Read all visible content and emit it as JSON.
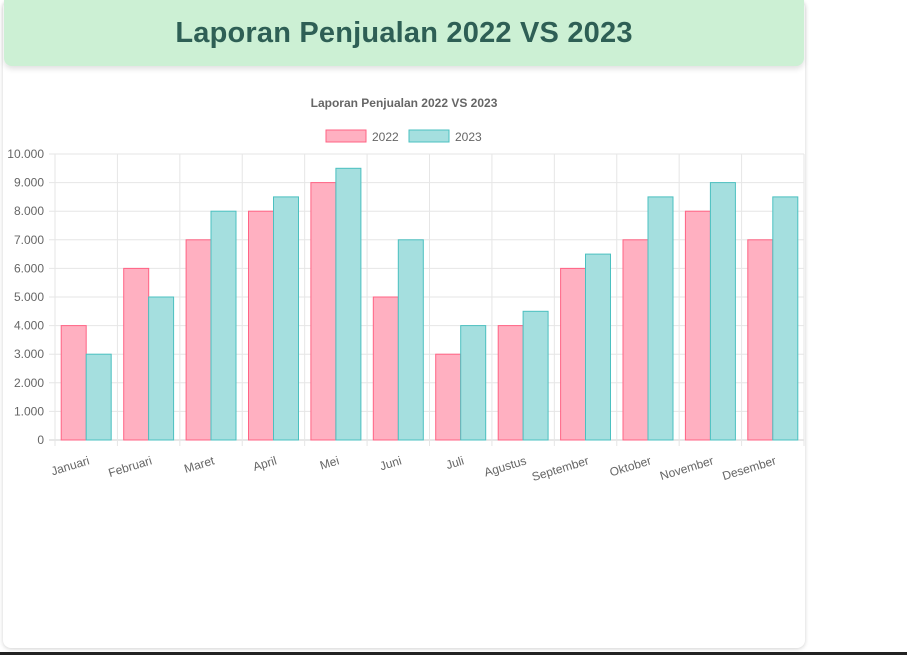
{
  "header": {
    "title": "Laporan Penjualan 2022 VS 2023"
  },
  "chart_data": {
    "type": "bar",
    "title": "Laporan Penjualan 2022 VS 2023",
    "categories": [
      "Januari",
      "Februari",
      "Maret",
      "April",
      "Mei",
      "Juni",
      "Juli",
      "Agustus",
      "September",
      "Oktober",
      "November",
      "Desember"
    ],
    "series": [
      {
        "name": "2022",
        "color": "#ffb0c1",
        "border": "#ff6384",
        "values": [
          4000,
          6000,
          7000,
          8000,
          9000,
          5000,
          3000,
          4000,
          6000,
          7000,
          8000,
          7000
        ]
      },
      {
        "name": "2023",
        "color": "#a5dfdf",
        "border": "#4bc0c0",
        "values": [
          3000,
          5000,
          8000,
          8500,
          9500,
          7000,
          4000,
          4500,
          6500,
          8500,
          9000,
          8500
        ]
      }
    ],
    "ylim": [
      0,
      10000
    ],
    "yticks": [
      "0",
      "1.000",
      "2.000",
      "3.000",
      "4.000",
      "5.000",
      "6.000",
      "7.000",
      "8.000",
      "9.000",
      "10.000"
    ],
    "legend": "top",
    "grid": true
  }
}
